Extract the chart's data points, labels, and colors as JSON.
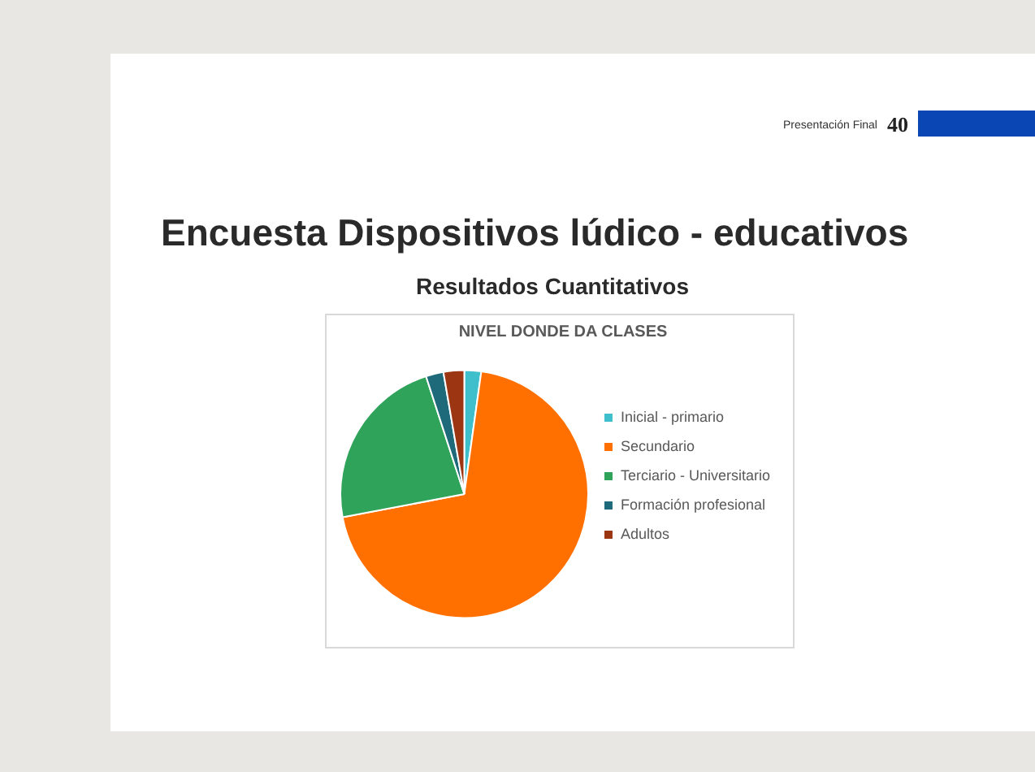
{
  "chart_data": {
    "type": "pie",
    "title": "NIVEL DONDE DA CLASES",
    "subtitle": "Resultados Cuantitativos",
    "annotations": [
      "Encuesta Dispositivos lúdico - educativos",
      "Presentación Final",
      "40"
    ],
    "categories": [
      "Inicial - primario",
      "Secundario",
      "Terciario - Universitario",
      "Formación profesional",
      "Adultos"
    ],
    "values": [
      2.2,
      69.8,
      23,
      2.3,
      2.7
    ],
    "colors": [
      "#3fbfcb",
      "#ff7000",
      "#30a35a",
      "#1f6a7a",
      "#9c3512"
    ],
    "legend": "right"
  }
}
